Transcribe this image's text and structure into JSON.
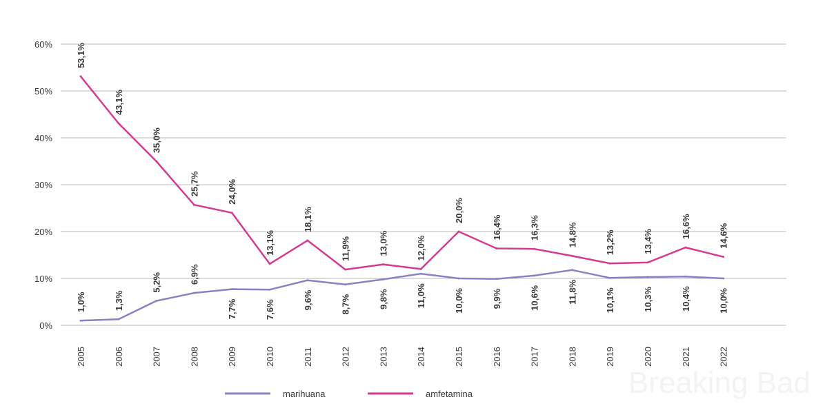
{
  "chart_data": {
    "type": "line",
    "x": [
      "2005",
      "2006",
      "2007",
      "2008",
      "2009",
      "2010",
      "2011",
      "2012",
      "2013",
      "2014",
      "2015",
      "2016",
      "2017",
      "2018",
      "2019",
      "2020",
      "2021",
      "2022"
    ],
    "series": [
      {
        "name": "marihuana",
        "color": "#8a80c4",
        "values": [
          1.0,
          1.3,
          5.2,
          6.9,
          7.7,
          7.6,
          9.6,
          8.7,
          9.8,
          11.0,
          10.0,
          9.9,
          10.6,
          11.8,
          10.1,
          10.3,
          10.4,
          10.0
        ],
        "labels": [
          "1,0%",
          "1,3%",
          "5,2%",
          "6,9%",
          "7,7%",
          "7,6%",
          "9,6%",
          "8,7%",
          "9,8%",
          "11,0%",
          "10,0%",
          "9,9%",
          "10,6%",
          "11,8%",
          "10,1%",
          "10,3%",
          "10,4%",
          "10,0%"
        ]
      },
      {
        "name": "amfetamina",
        "color": "#d63a8e",
        "values": [
          53.1,
          43.1,
          35.0,
          25.7,
          24.0,
          13.1,
          18.1,
          11.9,
          13.0,
          12.0,
          20.0,
          16.4,
          16.3,
          14.8,
          13.2,
          13.4,
          16.6,
          14.6
        ],
        "labels": [
          "53,1%",
          "43,1%",
          "35,0%",
          "25,7%",
          "24,0%",
          "13,1%",
          "18,1%",
          "11,9%",
          "13,0%",
          "12,0%",
          "20,0%",
          "16,4%",
          "16,3%",
          "14,8%",
          "13,2%",
          "13,4%",
          "16,6%",
          "14,6%"
        ]
      }
    ],
    "yticks": [
      {
        "value": 0,
        "label": "0%"
      },
      {
        "value": 10,
        "label": "10%"
      },
      {
        "value": 20,
        "label": "20%"
      },
      {
        "value": 30,
        "label": "30%"
      },
      {
        "value": 40,
        "label": "40%"
      },
      {
        "value": 50,
        "label": "50%"
      },
      {
        "value": 60,
        "label": "60%"
      }
    ],
    "ylim": [
      0,
      60
    ],
    "grid": true,
    "legend_position": "bottom-center"
  },
  "watermark": "Breaking Bad"
}
